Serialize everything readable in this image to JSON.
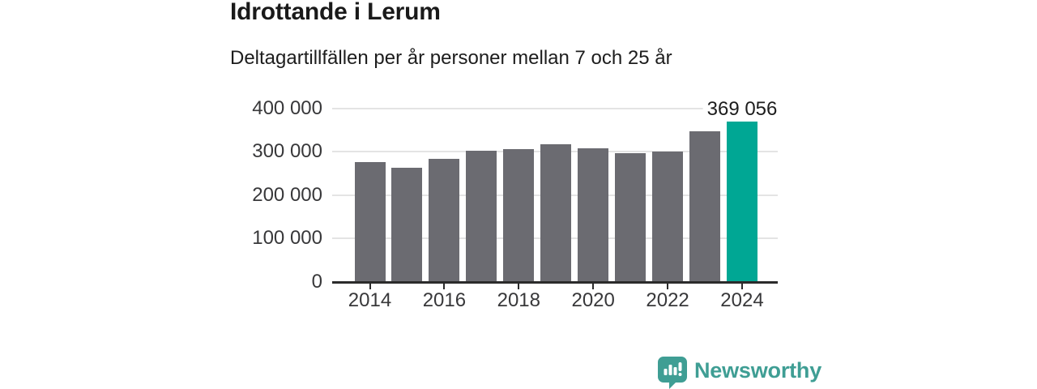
{
  "header": {
    "title": "Idrottande i Lerum",
    "subtitle": "Deltagartillfällen per år personer mellan 7 och 25 år"
  },
  "chart_data": {
    "type": "bar",
    "title": "Idrottande i Lerum",
    "subtitle": "Deltagartillfällen per år personer mellan 7 och 25 år",
    "xlabel": "",
    "ylabel": "",
    "categories": [
      2014,
      2015,
      2016,
      2017,
      2018,
      2019,
      2020,
      2021,
      2022,
      2023,
      2024
    ],
    "values": [
      276000,
      263000,
      284000,
      302000,
      305000,
      317000,
      307000,
      297000,
      301000,
      346000,
      369056
    ],
    "highlight_index": 10,
    "annotation": {
      "text": "369 056",
      "index": 10
    },
    "ylim": [
      0,
      400000
    ],
    "yticks": [
      0,
      100000,
      200000,
      300000,
      400000
    ],
    "ytick_labels": [
      "0",
      "100 000",
      "200 000",
      "300 000",
      "400 000"
    ],
    "xtick_indices": [
      0,
      2,
      4,
      6,
      8,
      10
    ],
    "xtick_labels": [
      "2014",
      "2016",
      "2018",
      "2020",
      "2022",
      "2024"
    ],
    "grid": true,
    "legend": "none",
    "bar_color": "#6b6b71",
    "highlight_color": "#00a794"
  },
  "footer": {
    "brand": "Newsworthy",
    "brand_color": "#3f9e94",
    "logo_icon": "speech-bubble-bar-chart-exclamation"
  }
}
